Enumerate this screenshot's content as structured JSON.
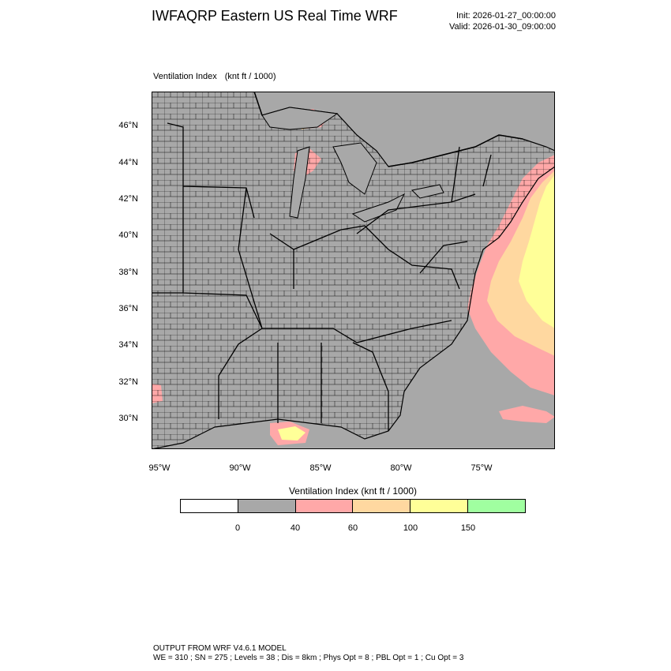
{
  "header": {
    "title": "IWFAQRP Eastern US Real Time WRF",
    "init": "Init: 2026-01-27_00:00:00",
    "valid": "Valid: 2026-01-30_09:00:00"
  },
  "plot": {
    "field_label": "Ventilation Index",
    "units_label": "(knt ft / 1000)"
  },
  "axes": {
    "lat_ticks": [
      "46°N",
      "44°N",
      "42°N",
      "40°N",
      "38°N",
      "36°N",
      "34°N",
      "32°N",
      "30°N"
    ],
    "lon_ticks": [
      "95°W",
      "90°W",
      "85°W",
      "80°W",
      "75°W"
    ]
  },
  "colorbar": {
    "title": "Ventilation Index  (knt ft / 1000)",
    "labels": [
      "0",
      "40",
      "60",
      "100",
      "150"
    ],
    "colors": [
      "#ffffff",
      "#a8a8a8",
      "#ffa8a8",
      "#ffd8a0",
      "#ffff98",
      "#a0ffa0"
    ]
  },
  "colors": {
    "land": "#a8a8a8",
    "water": "#a8a8a8",
    "low": "#ffa8a8",
    "mid": "#ffd8a0",
    "high": "#ffff98"
  },
  "footer": {
    "line1": "OUTPUT FROM WRF V4.6.1 MODEL",
    "line2": "WE = 310 ; SN = 275 ; Levels = 38 ; Dis = 8km ; Phys Opt = 8 ; PBL Opt = 1 ; Cu Opt = 3"
  }
}
